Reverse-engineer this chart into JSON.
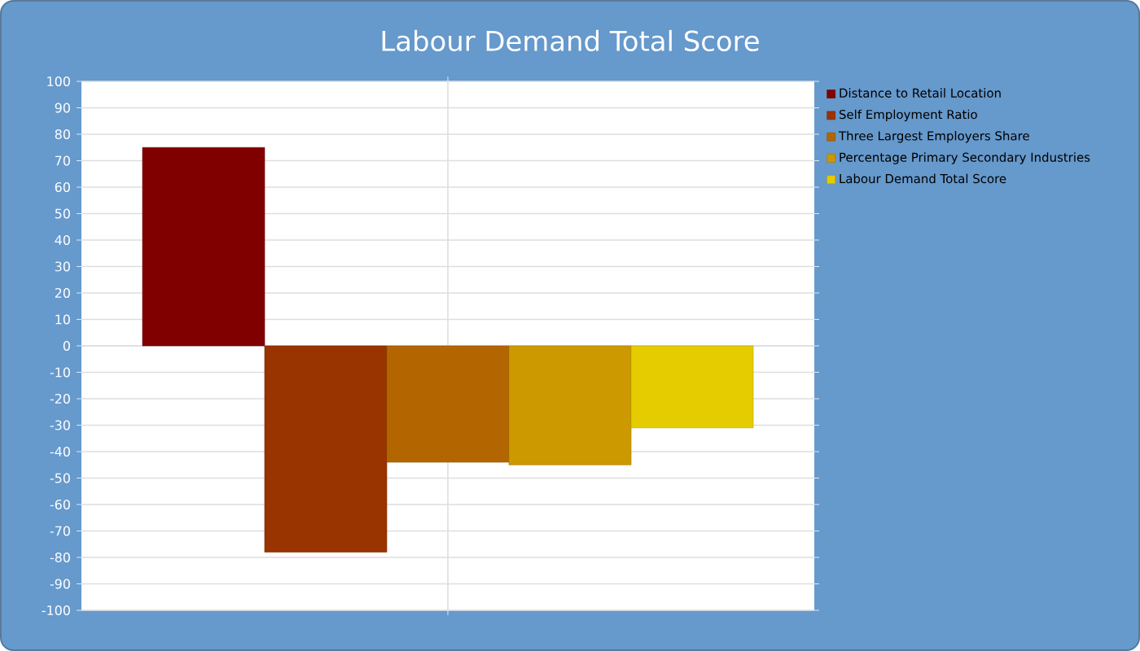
{
  "chart_data": {
    "type": "bar",
    "title": "Labour Demand Total Score",
    "categories": [
      null
    ],
    "series": [
      {
        "name": "Distance to Retail Location",
        "color": "#800000",
        "values": [
          75
        ]
      },
      {
        "name": "Self Employment Ratio",
        "color": "#993300",
        "values": [
          -78
        ]
      },
      {
        "name": "Three Largest Employers Share",
        "color": "#b36600",
        "values": [
          -44
        ]
      },
      {
        "name": "Percentage Primary Secondary Industries",
        "color": "#cc9900",
        "values": [
          -45
        ]
      },
      {
        "name": "Labour Demand Total Score",
        "color": "#e5cc00",
        "values": [
          -31
        ]
      }
    ],
    "ylim": [
      -100,
      100
    ],
    "yticks": [
      -100,
      -90,
      -80,
      -70,
      -60,
      -50,
      -40,
      -30,
      -20,
      -10,
      0,
      10,
      20,
      30,
      40,
      50,
      60,
      70,
      80,
      90,
      100
    ],
    "grid": true,
    "legend": "right"
  }
}
